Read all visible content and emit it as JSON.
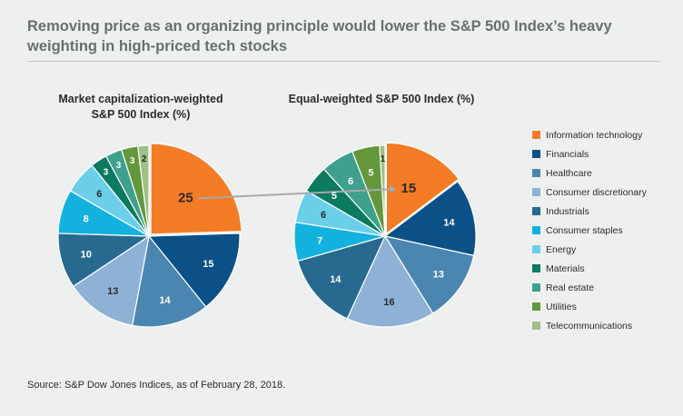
{
  "title": "Removing price as an organizing principle would lower the S&P 500 Index’s heavy weighting in high-priced tech stocks",
  "source": "Source: S&P Dow Jones Indices, as of February 28, 2018.",
  "legend": [
    {
      "label": "Information technology",
      "color": "#f47c27"
    },
    {
      "label": "Financials",
      "color": "#0b5087"
    },
    {
      "label": "Healthcare",
      "color": "#4a86b0"
    },
    {
      "label": "Consumer discretionary",
      "color": "#8db2d6"
    },
    {
      "label": "Industrials",
      "color": "#28698f"
    },
    {
      "label": "Consumer staples",
      "color": "#13b1de"
    },
    {
      "label": "Energy",
      "color": "#6bcfea"
    },
    {
      "label": "Materials",
      "color": "#0c7a5e"
    },
    {
      "label": "Real estate",
      "color": "#3ea08d"
    },
    {
      "label": "Utilities",
      "color": "#64963b"
    },
    {
      "label": "Telecommunications",
      "color": "#9fc084"
    }
  ],
  "chart_data": [
    {
      "type": "pie",
      "title": "Market capitalization-weighted S&P 500 Index (%)",
      "categories": [
        "Information technology",
        "Financials",
        "Healthcare",
        "Consumer discretionary",
        "Industrials",
        "Consumer staples",
        "Energy",
        "Materials",
        "Real estate",
        "Utilities",
        "Telecommunications"
      ],
      "values": [
        25,
        15,
        14,
        13,
        10,
        8,
        6,
        3,
        3,
        3,
        2
      ],
      "highlighted": "Information technology"
    },
    {
      "type": "pie",
      "title": "Equal-weighted S&P 500 Index (%)",
      "categories": [
        "Information technology",
        "Financials",
        "Healthcare",
        "Consumer discretionary",
        "Industrials",
        "Consumer staples",
        "Energy",
        "Materials",
        "Real estate",
        "Utilities",
        "Telecommunications"
      ],
      "values": [
        15,
        14,
        13,
        16,
        14,
        7,
        6,
        5,
        6,
        5,
        1
      ],
      "highlighted": "Information technology"
    }
  ],
  "colors": {
    "background": "#eef0f0",
    "title_text": "#6b6e70",
    "arrow": "#a7a9ab",
    "label_dark": "#2b2b2b",
    "label_light": "#ffffff"
  }
}
